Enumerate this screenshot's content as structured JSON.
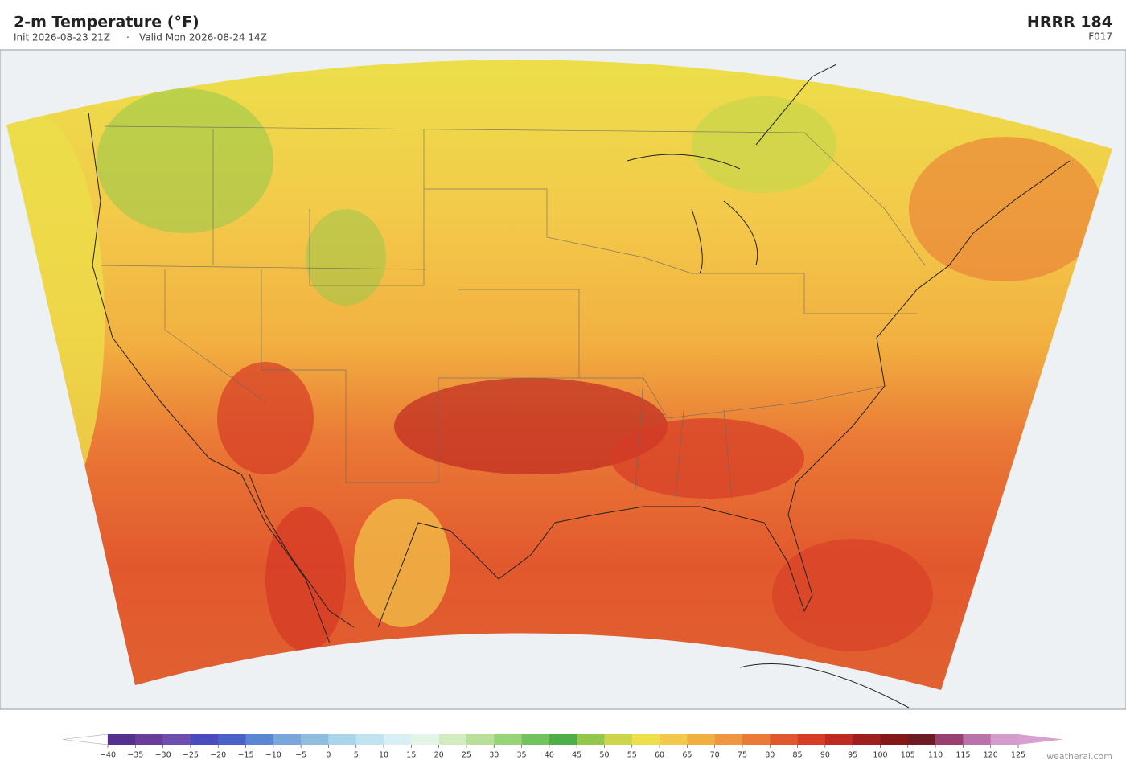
{
  "header": {
    "title": "2-m Temperature  (°F)",
    "init": "Init 2026-08-23 21Z",
    "separator": "·",
    "valid": "Valid Mon 2026-08-24 14Z",
    "model": "HRRR  184",
    "forecast_hour": "F017"
  },
  "colorbar": {
    "ticks": [
      {
        "value": -40,
        "label": "−40"
      },
      {
        "value": -35,
        "label": "−35"
      },
      {
        "value": -30,
        "label": "−30"
      },
      {
        "value": -25,
        "label": "−25"
      },
      {
        "value": -20,
        "label": "−20"
      },
      {
        "value": -15,
        "label": "−15"
      },
      {
        "value": -10,
        "label": "−10"
      },
      {
        "value": -5,
        "label": "−5"
      },
      0,
      5,
      10,
      15,
      20,
      25,
      30,
      35,
      40,
      45,
      50,
      55,
      60,
      65,
      70,
      75,
      80,
      85,
      90,
      95,
      100,
      105,
      110,
      115,
      120,
      125
    ],
    "colors": [
      "#55308f",
      "#6a3d9a",
      "#6e4db0",
      "#4a4bc0",
      "#4a62c8",
      "#5b86d4",
      "#7aa6dc",
      "#8fbde0",
      "#a9d4ea",
      "#c0e3f0",
      "#d8f0f4",
      "#e3f5e6",
      "#d2ecc0",
      "#b8e09a",
      "#98d47a",
      "#74c25e",
      "#4eae4a",
      "#94c84a",
      "#cdd64a",
      "#ecdf4a",
      "#f3c94a",
      "#f2b040",
      "#ef963e",
      "#ea7a36",
      "#e2582e",
      "#d63c26",
      "#bf2a22",
      "#a01e1e",
      "#851818",
      "#701a22",
      "#9a4070",
      "#b873a8",
      "#d49ccb"
    ],
    "under_color": "#ffffff",
    "over_color": "#d8a0d0"
  },
  "watermark": "weatherai.com"
}
